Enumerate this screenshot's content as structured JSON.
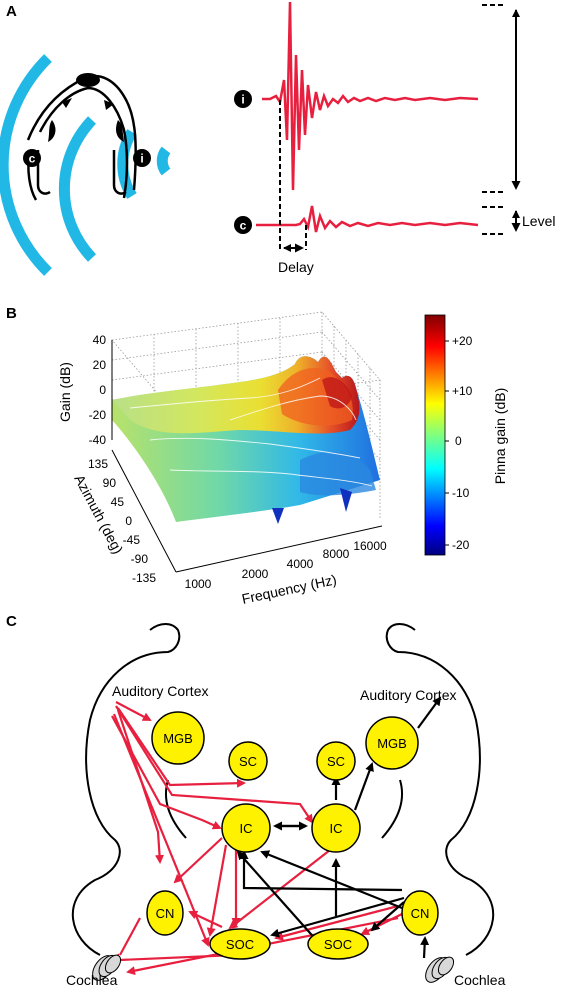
{
  "panel_a": {
    "letter": "A",
    "marker_i": "i",
    "marker_c": "c",
    "delay_label": "Delay",
    "level_label": "Level",
    "colors": {
      "wave": "#e8203f",
      "sound": "#22b8e6"
    }
  },
  "panel_b": {
    "letter": "B",
    "gain_axis_label": "Gain (dB)",
    "gain_ticks": [
      "40",
      "20",
      "0",
      "-20",
      "-40"
    ],
    "azimuth_axis_label": "Azimuth (deg)",
    "azimuth_ticks": [
      "135",
      "90",
      "45",
      "0",
      "-45",
      "-90",
      "-135"
    ],
    "frequency_axis_label": "Frequency (Hz)",
    "frequency_ticks": [
      "1000",
      "2000",
      "4000",
      "8000",
      "16000"
    ],
    "colorbar_label": "Pinna gain (dB)",
    "colorbar_ticks": [
      "+20",
      "+10",
      "0",
      "-10",
      "-20"
    ],
    "colorbar_range": [
      -22,
      24
    ]
  },
  "panel_c": {
    "letter": "C",
    "left_cortex_label": "Auditory Cortex",
    "right_cortex_label": "Auditory Cortex",
    "nodes": {
      "mgb_left": "MGB",
      "sc_left": "SC",
      "sc_right": "SC",
      "mgb_right": "MGB",
      "ic_left": "IC",
      "ic_right": "IC",
      "cn_left": "CN",
      "cn_right": "CN",
      "soc_left": "SOC",
      "soc_right": "SOC"
    },
    "cochlea_left_label": "Cochlea",
    "cochlea_right_label": "Cochlea",
    "colors": {
      "descending": "#e8203f",
      "ascending": "#000000",
      "node_fill": "#fff200"
    }
  }
}
